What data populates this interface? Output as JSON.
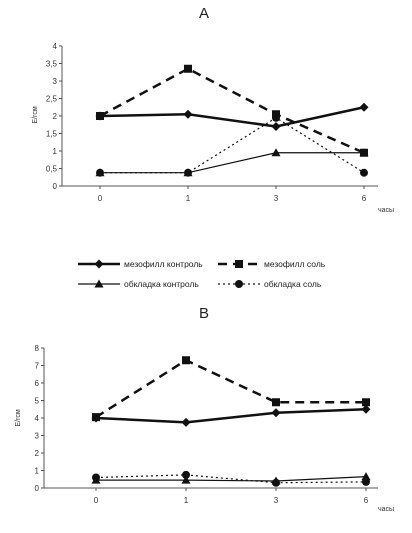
{
  "chart_data": [
    {
      "type": "line",
      "title": "A",
      "ylabel": "Е/гсм",
      "xlabel": "часы",
      "categories": [
        "0",
        "1",
        "3",
        "6"
      ],
      "ylim": [
        0,
        4
      ],
      "yticks": [
        "0",
        "0,5",
        "1",
        "1,5",
        "2",
        "2,5",
        "3",
        "3,5",
        "4"
      ],
      "series": [
        {
          "name": "мезофилл контроль",
          "values": [
            2.0,
            2.05,
            1.7,
            2.25
          ],
          "color": "#111111",
          "marker": "diamond",
          "line": "solid",
          "width": 2.5
        },
        {
          "name": "мезофилл соль",
          "values": [
            2.0,
            3.35,
            2.05,
            0.95
          ],
          "color": "#111111",
          "marker": "square",
          "line": "dashed",
          "width": 2.5
        },
        {
          "name": "обкладка контроль",
          "values": [
            0.38,
            0.38,
            0.95,
            0.95
          ],
          "color": "#111111",
          "marker": "triangle",
          "line": "solid",
          "width": 1.2
        },
        {
          "name": "обкладка соль",
          "values": [
            0.38,
            0.38,
            1.95,
            0.38
          ],
          "color": "#111111",
          "marker": "circle",
          "line": "dotted",
          "width": 1.2
        }
      ]
    },
    {
      "type": "line",
      "title": "B",
      "ylabel": "Е/гсм",
      "xlabel": "часы",
      "categories": [
        "0",
        "1",
        "3",
        "6"
      ],
      "ylim": [
        0,
        8
      ],
      "yticks": [
        "0",
        "1",
        "2",
        "3",
        "4",
        "5",
        "6",
        "7",
        "8"
      ],
      "series": [
        {
          "name": "мезофилл контроль",
          "values": [
            4.0,
            3.75,
            4.3,
            4.5
          ],
          "color": "#111111",
          "marker": "diamond",
          "line": "solid",
          "width": 2.5
        },
        {
          "name": "мезофилл соль",
          "values": [
            4.05,
            7.3,
            4.9,
            4.9
          ],
          "color": "#111111",
          "marker": "square",
          "line": "dashed",
          "width": 2.5
        },
        {
          "name": "обкладка контроль",
          "values": [
            0.45,
            0.45,
            0.4,
            0.65
          ],
          "color": "#111111",
          "marker": "triangle",
          "line": "solid",
          "width": 1.2
        },
        {
          "name": "обкладка соль",
          "values": [
            0.6,
            0.75,
            0.3,
            0.35
          ],
          "color": "#111111",
          "marker": "circle",
          "line": "dotted",
          "width": 1.2
        }
      ]
    }
  ],
  "legend": {
    "position": "between-panels",
    "items": [
      "мезофилл контроль",
      "мезофилл соль",
      "обкладка контроль",
      "обкладка соль"
    ]
  }
}
